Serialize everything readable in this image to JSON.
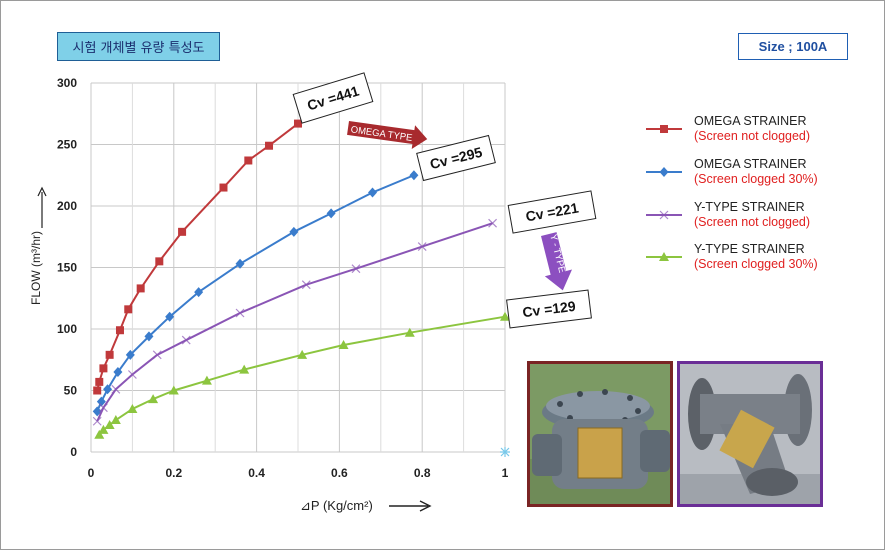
{
  "title": "시험 개체별 유량 특성도",
  "size_label": "Size ; 100A",
  "colors": {
    "omega_clean": "#c0393b",
    "omega_clogged": "#3a7ccc",
    "ytype_clean": "#8a55b5",
    "ytype_clogged": "#8cc53f",
    "omega_arrow": "#a82a2e",
    "ytype_arrow": "#8c4fc0",
    "photo_left_border": "#7a2424",
    "photo_right_border": "#6a2e96"
  },
  "annotations": {
    "cv_omega_clean": "Cv =441",
    "cv_omega_clogged": "Cv =295",
    "cv_ytype_clean": "Cv =221",
    "cv_ytype_clogged": "Cv =129",
    "omega_type_arrow": "OMEGA TYPE",
    "ytype_arrow": "Y - TYPE"
  },
  "chart_data": {
    "type": "line",
    "xlabel": "⊿P (Kg/cm²)",
    "ylabel": "FLOW (m³/hr)",
    "xlim": [
      0,
      1
    ],
    "ylim": [
      0,
      300
    ],
    "x_ticks": [
      "0",
      "0.2",
      "0.4",
      "0.6",
      "0.8",
      "1"
    ],
    "y_ticks": [
      "0",
      "50",
      "100",
      "150",
      "200",
      "250",
      "300"
    ],
    "grid": true,
    "legend_position": "right",
    "series": [
      {
        "name": "OMEGA STRAINER",
        "subname": "(Screen not clogged)",
        "marker": "square",
        "x": [
          0.015,
          0.02,
          0.03,
          0.045,
          0.07,
          0.09,
          0.12,
          0.165,
          0.22,
          0.32,
          0.38,
          0.43,
          0.5
        ],
        "y": [
          50,
          57,
          68,
          79,
          99,
          116,
          133,
          155,
          179,
          215,
          237,
          249,
          267
        ]
      },
      {
        "name": "OMEGA STRAINER",
        "subname": "(Screen clogged 30%)",
        "marker": "diamond",
        "x": [
          0.015,
          0.025,
          0.04,
          0.065,
          0.095,
          0.14,
          0.19,
          0.26,
          0.36,
          0.49,
          0.58,
          0.68,
          0.78
        ],
        "y": [
          33,
          41,
          51,
          65,
          79,
          94,
          110,
          130,
          153,
          179,
          194,
          211,
          225
        ]
      },
      {
        "name": "Y-TYPE STRAINER",
        "subname": "(Screen not clogged)",
        "marker": "x",
        "x": [
          0.015,
          0.03,
          0.06,
          0.1,
          0.16,
          0.23,
          0.36,
          0.52,
          0.64,
          0.8,
          0.97
        ],
        "y": [
          25,
          36,
          51,
          63,
          79,
          91,
          113,
          136,
          149,
          167,
          186
        ]
      },
      {
        "name": "Y-TYPE STRAINER",
        "subname": "(Screen clogged 30%)",
        "marker": "triangle",
        "x": [
          0.02,
          0.03,
          0.045,
          0.06,
          0.1,
          0.15,
          0.2,
          0.28,
          0.37,
          0.51,
          0.61,
          0.77,
          1.0
        ],
        "y": [
          14,
          18,
          22,
          26,
          35,
          43,
          50,
          58,
          67,
          79,
          87,
          97,
          110
        ]
      }
    ],
    "extra_points": [
      {
        "x": 1.0,
        "y": 0,
        "marker": "asterisk",
        "color": "#77c8ea"
      }
    ]
  }
}
